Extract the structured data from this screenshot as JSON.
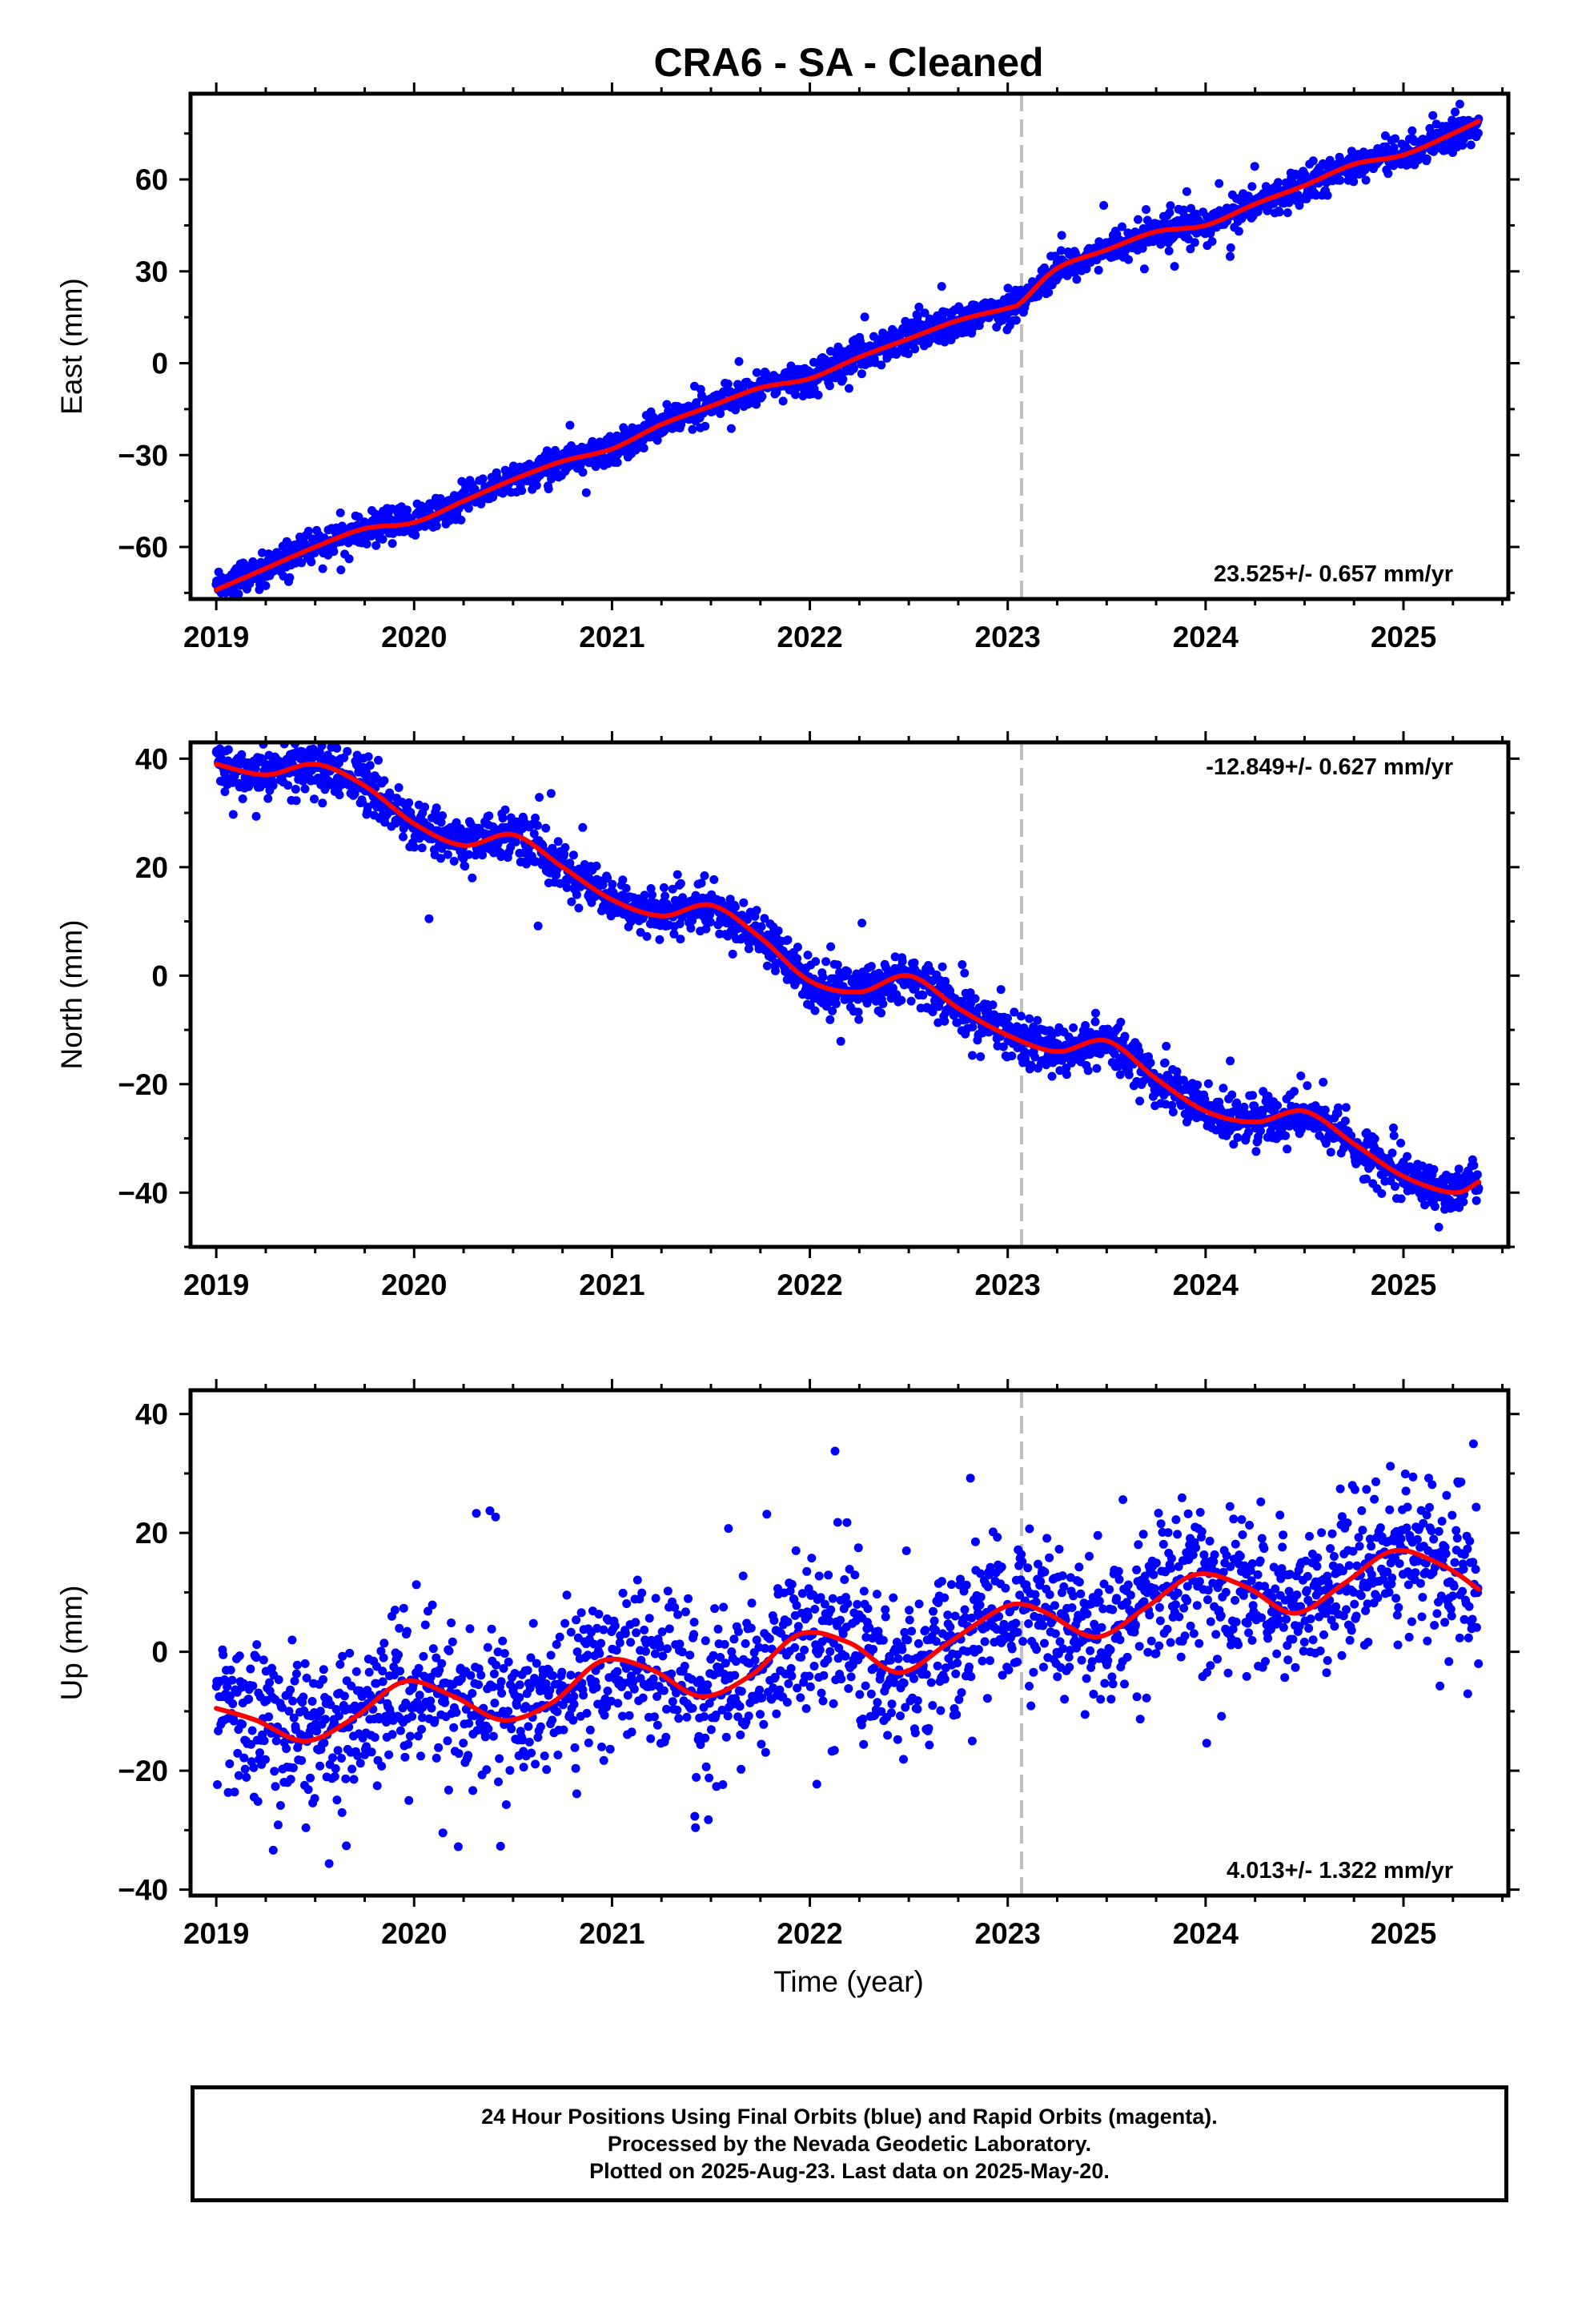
{
  "figure": {
    "title": "CRA6  - SA - Cleaned",
    "xlabel": "Time (year)",
    "caption": [
      "24 Hour Positions Using Final Orbits (blue) and Rapid Orbits (magenta).",
      "Processed by the Nevada Geodetic Laboratory.",
      "Plotted on 2025-Aug-23. Last data on 2025-May-20."
    ]
  },
  "colors": {
    "final_orbits": "#0000ff",
    "fit": "#ff0000",
    "event_line": "#c0c0c0"
  },
  "chart_data": [
    {
      "type": "scatter",
      "component": "east",
      "ylabel": "East (mm)",
      "rate_label": "23.525+/- 0.657 mm/yr",
      "rate_position": "bottom-right",
      "xlim": [
        2018.87,
        2025.53
      ],
      "ylim": [
        -77,
        88
      ],
      "xticks": [
        2019,
        2020,
        2021,
        2022,
        2023,
        2024,
        2025
      ],
      "yticks": [
        -60,
        -30,
        0,
        30,
        60
      ],
      "event_line_x": 2023.07,
      "trend_start_year": 2019.0,
      "trend_start_value": -74,
      "rate": 23.525,
      "annual_amplitude": 2.2,
      "annual_phase": 0.7,
      "semiannual_amplitude": 0.6,
      "offsets": [
        {
          "x": 2023.07,
          "value": 5.0
        }
      ],
      "scatter_sigma": 2.6,
      "series": [
        {
          "name": "Final Orbits",
          "style": "points",
          "color": "#0000ff",
          "start": 2019.0,
          "end": 2025.38,
          "count": 2150,
          "sigma": 2.6,
          "outlier_fraction": 0.01
        },
        {
          "name": "Model fit",
          "style": "line",
          "color": "#ff0000",
          "x": [
            2019.0,
            2019.25,
            2019.5,
            2019.75,
            2020.0,
            2020.25,
            2020.5,
            2020.75,
            2021.0,
            2021.25,
            2021.5,
            2021.75,
            2022.0,
            2022.25,
            2022.5,
            2022.75,
            2023.0,
            2023.07,
            2023.25,
            2023.5,
            2023.75,
            2024.0,
            2024.25,
            2024.5,
            2024.75,
            2025.0,
            2025.25,
            2025.38
          ],
          "y": [
            -74,
            -67,
            -60,
            -54,
            -52,
            -45,
            -38,
            -32,
            -28,
            -20,
            -14,
            -8,
            -5,
            2,
            8,
            14,
            18,
            20,
            31,
            37,
            43,
            45,
            52,
            58,
            65,
            68,
            75,
            79
          ]
        }
      ]
    },
    {
      "type": "scatter",
      "component": "north",
      "ylabel": "North (mm)",
      "rate_label": "-12.849+/- 0.627 mm/yr",
      "rate_position": "top-right",
      "xlim": [
        2018.87,
        2025.53
      ],
      "ylim": [
        -50,
        43
      ],
      "xticks": [
        2019,
        2020,
        2021,
        2022,
        2023,
        2024,
        2025
      ],
      "yticks": [
        -40,
        -20,
        0,
        20,
        40
      ],
      "event_line_x": 2023.07,
      "scatter_sigma": 2.2,
      "series": [
        {
          "name": "Final Orbits",
          "style": "points",
          "color": "#0000ff",
          "start": 2019.0,
          "end": 2025.38,
          "count": 2150,
          "sigma": 2.2,
          "outlier_fraction": 0.01
        },
        {
          "name": "Model fit",
          "style": "line",
          "color": "#ff0000",
          "x": [
            2019.0,
            2019.25,
            2019.5,
            2019.75,
            2020.0,
            2020.25,
            2020.5,
            2020.75,
            2021.0,
            2021.25,
            2021.5,
            2021.75,
            2022.0,
            2022.25,
            2022.5,
            2022.75,
            2023.0,
            2023.25,
            2023.5,
            2023.75,
            2024.0,
            2024.25,
            2024.5,
            2024.75,
            2025.0,
            2025.25,
            2025.38
          ],
          "y": [
            39,
            37,
            39,
            35,
            28,
            24,
            26,
            20,
            14,
            11,
            13,
            7,
            -1,
            -3,
            0,
            -6,
            -11,
            -14,
            -12,
            -19,
            -25,
            -27,
            -25,
            -31,
            -37,
            -40,
            -38
          ]
        }
      ]
    },
    {
      "type": "scatter",
      "component": "up",
      "ylabel": "Up (mm)",
      "rate_label": "4.013+/- 1.322 mm/yr",
      "rate_position": "bottom-right",
      "xlim": [
        2018.87,
        2025.53
      ],
      "ylim": [
        -41,
        44
      ],
      "xticks": [
        2019,
        2020,
        2021,
        2022,
        2023,
        2024,
        2025
      ],
      "yticks": [
        -40,
        -20,
        0,
        20,
        40
      ],
      "event_line_x": 2023.07,
      "scatter_sigma": 6.5,
      "series": [
        {
          "name": "Final Orbits",
          "style": "points",
          "color": "#0000ff",
          "start": 2019.0,
          "end": 2025.38,
          "count": 2000,
          "sigma": 6.5,
          "outlier_fraction": 0.015
        },
        {
          "name": "Model fit",
          "style": "line",
          "color": "#ff0000",
          "x": [
            2019.0,
            2019.2,
            2019.45,
            2019.7,
            2019.95,
            2020.2,
            2020.45,
            2020.7,
            2020.95,
            2021.2,
            2021.45,
            2021.7,
            2021.95,
            2022.2,
            2022.45,
            2022.7,
            2022.95,
            2023.07,
            2023.2,
            2023.45,
            2023.7,
            2023.95,
            2024.2,
            2024.45,
            2024.7,
            2024.95,
            2025.2,
            2025.38
          ],
          "y": [
            -9.5,
            -11.5,
            -15.0,
            -11.0,
            -5.0,
            -7.5,
            -11.5,
            -8.5,
            -1.5,
            -3.0,
            -7.5,
            -4.0,
            3.0,
            1.5,
            -3.5,
            1.5,
            7.0,
            8.0,
            6.5,
            2.5,
            7.5,
            13.0,
            11.0,
            6.5,
            11.5,
            17.0,
            14.5,
            10.5
          ]
        }
      ]
    }
  ]
}
